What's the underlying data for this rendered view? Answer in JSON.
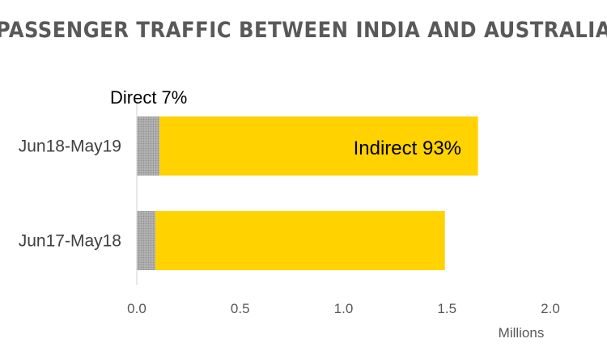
{
  "chart_data": {
    "type": "bar",
    "orientation": "horizontal",
    "stacked": true,
    "title": "PASSENGER TRAFFIC BETWEEN INDIA AND AUSTRALIA",
    "categories": [
      "Jun18-May19",
      "Jun17-May18"
    ],
    "series": [
      {
        "name": "Direct",
        "values": [
          0.11,
          0.09
        ],
        "color": "#A6A6A6",
        "pattern": "dotted"
      },
      {
        "name": "Indirect",
        "values": [
          1.54,
          1.4
        ],
        "color": "#FFD200"
      }
    ],
    "xlim": [
      0,
      2.0
    ],
    "x_ticks": [
      "0.0",
      "0.5",
      "1.0",
      "1.5",
      "2.0"
    ],
    "unit_label": "Millions",
    "grid": false,
    "legend": "none",
    "annotations": {
      "direct": "Direct 7%",
      "indirect": "Indirect 93%"
    }
  }
}
